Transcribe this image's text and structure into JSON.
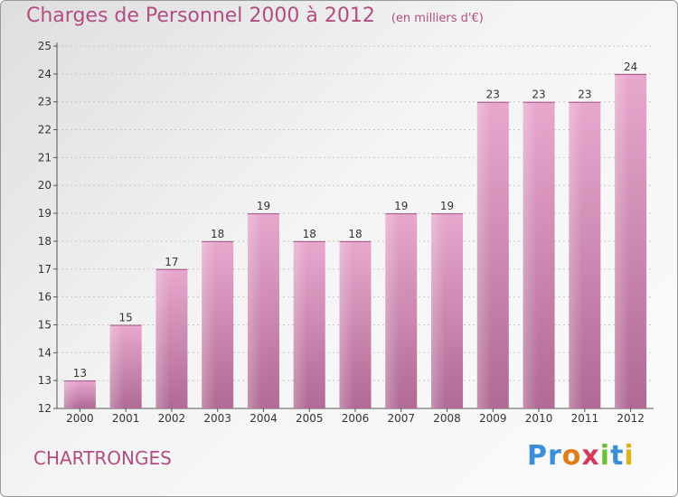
{
  "header": {
    "title": "Charges de Personnel 2000 à 2012",
    "subtitle": "(en milliers d'€)"
  },
  "footer": {
    "town": "CHARTRONGES",
    "logo_letters": [
      {
        "ch": "P",
        "color": "#3a8fd6"
      },
      {
        "ch": "r",
        "color": "#3a8fd6"
      },
      {
        "ch": "o",
        "color": "#e07b1a"
      },
      {
        "ch": "x",
        "color": "#d63a5a"
      },
      {
        "ch": "i",
        "color": "#6bbf3a"
      },
      {
        "ch": "t",
        "color": "#3a8fd6"
      },
      {
        "ch": "i",
        "color": "#e0b21a"
      }
    ]
  },
  "chart_data": {
    "type": "bar",
    "categories": [
      "2000",
      "2001",
      "2002",
      "2003",
      "2004",
      "2005",
      "2006",
      "2007",
      "2008",
      "2009",
      "2010",
      "2011",
      "2012"
    ],
    "values": [
      13,
      15,
      17,
      18,
      19,
      18,
      18,
      19,
      19,
      23,
      23,
      23,
      24
    ],
    "title": "Charges de Personnel 2000 à 2012",
    "ylim": [
      12,
      25
    ],
    "yticks": [
      12,
      13,
      14,
      15,
      16,
      17,
      18,
      19,
      20,
      21,
      22,
      23,
      24,
      25
    ],
    "grid": true,
    "bar_color_top": "#e8a8ce",
    "bar_color_bottom": "#b06a94"
  }
}
